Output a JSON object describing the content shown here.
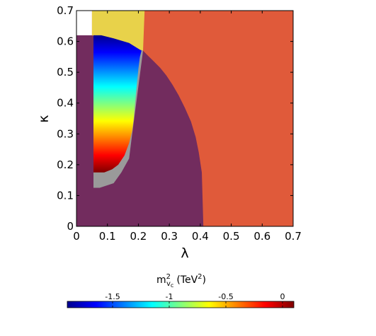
{
  "chart_data": {
    "type": "heatmap",
    "title": "",
    "xlabel": "λ",
    "ylabel": "κ",
    "xlim": [
      0,
      0.7
    ],
    "ylim": [
      0,
      0.7
    ],
    "xticks": [
      "0",
      "0.1",
      "0.2",
      "0.3",
      "0.4",
      "0.5",
      "0.6",
      "0.7"
    ],
    "yticks": [
      "0",
      "0.1",
      "0.2",
      "0.3",
      "0.4",
      "0.5",
      "0.6",
      "0.7"
    ],
    "grid": false,
    "regions": [
      {
        "color": "#e05a3a",
        "polygon": [
          [
            0.05,
            0.7
          ],
          [
            0.7,
            0.7
          ],
          [
            0.7,
            0
          ],
          [
            0.05,
            0
          ]
        ]
      },
      {
        "color": "#e8d24a",
        "polygon": [
          [
            0.05,
            0.7
          ],
          [
            0.22,
            0.7
          ],
          [
            0.215,
            0.57
          ],
          [
            0.05,
            0.62
          ]
        ]
      },
      {
        "color": "#722c5e",
        "polygon": [
          [
            0,
            0.62
          ],
          [
            0.05,
            0.62
          ],
          [
            0.05,
            0.62
          ],
          [
            0.215,
            0.57
          ],
          [
            0.23,
            0.555
          ],
          [
            0.25,
            0.535
          ],
          [
            0.27,
            0.515
          ],
          [
            0.29,
            0.49
          ],
          [
            0.31,
            0.46
          ],
          [
            0.33,
            0.425
          ],
          [
            0.35,
            0.385
          ],
          [
            0.37,
            0.34
          ],
          [
            0.385,
            0.29
          ],
          [
            0.395,
            0.24
          ],
          [
            0.405,
            0.175
          ],
          [
            0.41,
            0
          ],
          [
            0,
            0
          ]
        ]
      },
      {
        "color": "#9a9a9a",
        "polygon": [
          [
            0.055,
            0.62
          ],
          [
            0.215,
            0.57
          ],
          [
            0.18,
            0.3
          ],
          [
            0.17,
            0.22
          ],
          [
            0.145,
            0.175
          ],
          [
            0.12,
            0.14
          ],
          [
            0.075,
            0.125
          ],
          [
            0.055,
            0.125
          ]
        ]
      }
    ],
    "heat_region": {
      "polygon": [
        [
          0.055,
          0.62
        ],
        [
          0.08,
          0.62
        ],
        [
          0.12,
          0.61
        ],
        [
          0.17,
          0.595
        ],
        [
          0.21,
          0.57
        ],
        [
          0.205,
          0.55
        ],
        [
          0.2,
          0.51
        ],
        [
          0.195,
          0.46
        ],
        [
          0.19,
          0.41
        ],
        [
          0.185,
          0.35
        ],
        [
          0.18,
          0.31
        ],
        [
          0.17,
          0.27
        ],
        [
          0.155,
          0.23
        ],
        [
          0.135,
          0.2
        ],
        [
          0.115,
          0.185
        ],
        [
          0.09,
          0.175
        ],
        [
          0.055,
          0.175
        ]
      ],
      "value_top": -1.9,
      "value_bottom": 0.1
    },
    "colorbar": {
      "label_main": "m",
      "label_sup": "2",
      "label_sub": "v",
      "label_sub2": "c",
      "label_unit": "(TeV",
      "label_unit_sup": "2",
      "label_close": ")",
      "range": [
        -1.9,
        0.1
      ],
      "ticks": [
        {
          "value": -1.5,
          "label": "-1.5"
        },
        {
          "value": -1,
          "label": "-1"
        },
        {
          "value": -0.5,
          "label": "-0.5"
        },
        {
          "value": 0,
          "label": "0"
        }
      ],
      "colormap": [
        "#00008f",
        "#0000ff",
        "#0080ff",
        "#00ffff",
        "#80ff80",
        "#ffff00",
        "#ff8000",
        "#ff0000",
        "#800000"
      ]
    }
  }
}
